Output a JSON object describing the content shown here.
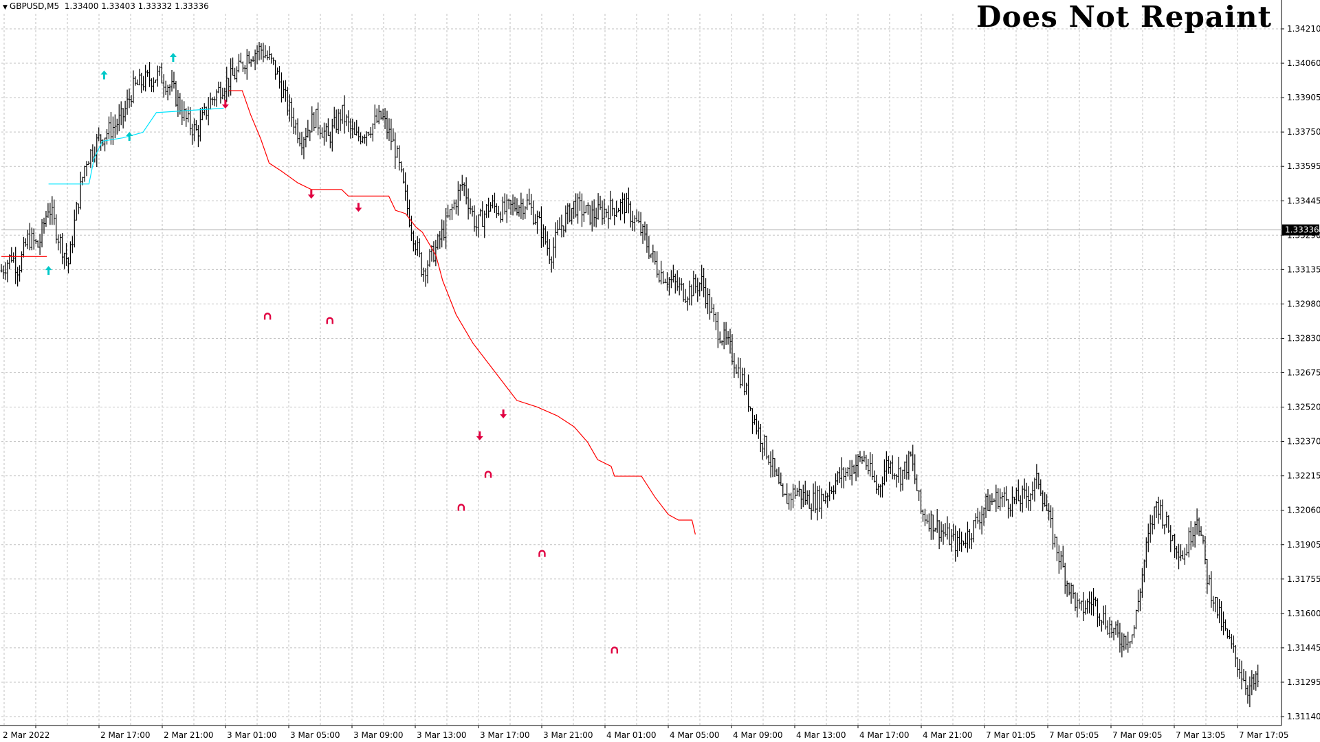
{
  "header": {
    "symbol": "GBPUSD,M5",
    "ohlc": "1.33400 1.33403 1.33332 1.33336"
  },
  "overlay_title": "Does Not Repaint",
  "colors": {
    "background": "#ffffff",
    "grid": "#c0c0c0",
    "bars": "#000000",
    "bull_line": "#00e5ff",
    "bear_line": "#ff0000",
    "buy_arrow": "#00c8c8",
    "sell_arrow": "#e00040",
    "current_price_bg": "#000000",
    "current_price_fg": "#ffffff"
  },
  "chart_data": {
    "type": "line",
    "title": "",
    "xlabel": "",
    "ylabel": "",
    "ylim": [
      1.3108,
      1.3432
    ],
    "grid": true,
    "y_ticks": [
      "1.34210",
      "1.34060",
      "1.33905",
      "1.33750",
      "1.33595",
      "1.33445",
      "1.33290",
      "1.33135",
      "1.32980",
      "1.32830",
      "1.32675",
      "1.32520",
      "1.32370",
      "1.32215",
      "1.32060",
      "1.31905",
      "1.31755",
      "1.31600",
      "1.31445",
      "1.31295",
      "1.31140"
    ],
    "x_ticks": [
      "2 Mar 2022",
      "2 Mar 17:00",
      "2 Mar 21:00",
      "3 Mar 01:00",
      "3 Mar 05:00",
      "3 Mar 09:00",
      "3 Mar 13:00",
      "3 Mar 17:00",
      "3 Mar 21:00",
      "4 Mar 01:00",
      "4 Mar 05:00",
      "4 Mar 09:00",
      "4 Mar 13:00",
      "4 Mar 17:00",
      "4 Mar 21:00",
      "7 Mar 01:05",
      "7 Mar 05:05",
      "7 Mar 09:05",
      "7 Mar 13:05",
      "7 Mar 17:05"
    ],
    "current_price": "1.33336",
    "current_price_value": 1.33336,
    "price_path": [
      [
        0,
        1.3315
      ],
      [
        0.3,
        1.3322
      ],
      [
        0.5,
        1.3316
      ],
      [
        0.8,
        1.333
      ],
      [
        1.1,
        1.3326
      ],
      [
        1.4,
        1.3345
      ],
      [
        1.7,
        1.333
      ],
      [
        2.0,
        1.3318
      ],
      [
        2.2,
        1.334
      ],
      [
        2.5,
        1.3365
      ],
      [
        2.9,
        1.3375
      ],
      [
        3.3,
        1.338
      ],
      [
        3.6,
        1.3385
      ],
      [
        3.9,
        1.3398
      ],
      [
        4.3,
        1.3402
      ],
      [
        4.7,
        1.3404
      ],
      [
        5.1,
        1.3397
      ],
      [
        5.5,
        1.3383
      ],
      [
        5.8,
        1.3378
      ],
      [
        6.2,
        1.3392
      ],
      [
        6.6,
        1.34
      ],
      [
        7.0,
        1.3405
      ],
      [
        7.3,
        1.3413
      ],
      [
        7.7,
        1.3416
      ],
      [
        8.1,
        1.3408
      ],
      [
        8.5,
        1.339
      ],
      [
        8.9,
        1.3375
      ],
      [
        9.3,
        1.3385
      ],
      [
        9.7,
        1.3375
      ],
      [
        10.1,
        1.3387
      ],
      [
        10.5,
        1.3375
      ],
      [
        10.9,
        1.338
      ],
      [
        11.3,
        1.3385
      ],
      [
        11.7,
        1.337
      ],
      [
        12.1,
        1.334
      ],
      [
        12.5,
        1.3315
      ],
      [
        12.9,
        1.3325
      ],
      [
        13.3,
        1.334
      ],
      [
        13.7,
        1.3355
      ],
      [
        14.1,
        1.3335
      ],
      [
        14.5,
        1.3345
      ],
      [
        14.9,
        1.3342
      ],
      [
        15.3,
        1.3345
      ],
      [
        15.6,
        1.3346
      ],
      [
        16.0,
        1.3335
      ],
      [
        16.3,
        1.3322
      ],
      [
        16.6,
        1.3335
      ],
      [
        17.0,
        1.3345
      ],
      [
        17.5,
        1.334
      ],
      [
        18.0,
        1.3343
      ],
      [
        18.5,
        1.3345
      ],
      [
        19.0,
        1.3333
      ],
      [
        19.5,
        1.3315
      ],
      [
        19.9,
        1.331
      ],
      [
        20.3,
        1.3305
      ],
      [
        20.8,
        1.331
      ],
      [
        21.2,
        1.329
      ],
      [
        21.6,
        1.328
      ],
      [
        22.0,
        1.3265
      ],
      [
        22.4,
        1.3245
      ],
      [
        22.8,
        1.323
      ],
      [
        23.2,
        1.321
      ],
      [
        23.6,
        1.3215
      ],
      [
        24.0,
        1.321
      ],
      [
        24.4,
        1.3212
      ],
      [
        24.8,
        1.322
      ],
      [
        25.2,
        1.3225
      ],
      [
        25.6,
        1.323
      ],
      [
        26.0,
        1.3215
      ],
      [
        26.3,
        1.3228
      ],
      [
        26.7,
        1.3222
      ],
      [
        27.0,
        1.323
      ],
      [
        27.3,
        1.3205
      ],
      [
        27.7,
        1.32
      ],
      [
        28.0,
        1.3195
      ],
      [
        28.4,
        1.319
      ],
      [
        28.8,
        1.3197
      ],
      [
        29.2,
        1.3208
      ],
      [
        29.6,
        1.3212
      ],
      [
        30.0,
        1.321
      ],
      [
        30.4,
        1.3212
      ],
      [
        30.8,
        1.322
      ],
      [
        31.2,
        1.3195
      ],
      [
        31.6,
        1.3175
      ],
      [
        32.0,
        1.316
      ],
      [
        32.4,
        1.3165
      ],
      [
        32.8,
        1.3155
      ],
      [
        33.2,
        1.3147
      ],
      [
        33.6,
        1.315
      ],
      [
        34.0,
        1.319
      ],
      [
        34.3,
        1.321
      ],
      [
        34.7,
        1.3195
      ],
      [
        35.1,
        1.3185
      ],
      [
        35.5,
        1.3205
      ],
      [
        35.8,
        1.3175
      ],
      [
        36.2,
        1.3155
      ],
      [
        36.6,
        1.314
      ],
      [
        37.0,
        1.3125
      ],
      [
        37.3,
        1.3128
      ]
    ],
    "bull_line": [
      [
        1.4,
        1.33545
      ],
      [
        2.6,
        1.33545
      ],
      [
        2.75,
        1.3366
      ],
      [
        3.0,
        1.3374
      ],
      [
        3.6,
        1.33755
      ],
      [
        4.2,
        1.3378
      ],
      [
        4.6,
        1.3387
      ],
      [
        6.6,
        1.3389
      ]
    ],
    "bear_line_1": [
      [
        0,
        1.33215
      ],
      [
        1.35,
        1.33215
      ]
    ],
    "bear_line_2": [
      [
        6.75,
        1.3397
      ],
      [
        7.15,
        1.3397
      ],
      [
        7.4,
        1.3386
      ],
      [
        7.7,
        1.3375
      ],
      [
        7.95,
        1.3364
      ],
      [
        8.3,
        1.33605
      ],
      [
        8.8,
        1.3355
      ],
      [
        9.2,
        1.3352
      ],
      [
        10.1,
        1.3352
      ],
      [
        10.3,
        1.3349
      ],
      [
        11.5,
        1.3349
      ],
      [
        11.7,
        1.33425
      ],
      [
        12.0,
        1.3341
      ],
      [
        12.3,
        1.3335
      ],
      [
        12.5,
        1.33325
      ],
      [
        12.9,
        1.3322
      ],
      [
        13.1,
        1.33105
      ],
      [
        13.5,
        1.3295
      ],
      [
        14.0,
        1.3282
      ],
      [
        14.5,
        1.3272
      ],
      [
        15.3,
        1.3256
      ],
      [
        15.9,
        1.3253
      ],
      [
        16.5,
        1.3249
      ],
      [
        17.0,
        1.3244
      ],
      [
        17.4,
        1.3237
      ],
      [
        17.7,
        1.3229
      ],
      [
        18.1,
        1.3226
      ],
      [
        18.2,
        1.32215
      ],
      [
        19.0,
        1.32215
      ],
      [
        19.4,
        1.3212
      ],
      [
        19.8,
        1.3204
      ],
      [
        20.1,
        1.32015
      ],
      [
        20.5,
        1.32015
      ],
      [
        20.6,
        1.3195
      ]
    ],
    "signals": [
      {
        "type": "buy",
        "x": 1.4,
        "price": 1.3315
      },
      {
        "type": "buy",
        "x": 3.8,
        "price": 1.3376
      },
      {
        "type": "buy",
        "x": 3.05,
        "price": 1.3404
      },
      {
        "type": "buy",
        "x": 5.1,
        "price": 1.3412
      },
      {
        "type": "sell",
        "x": 6.65,
        "price": 1.3391
      },
      {
        "type": "sell",
        "x": 9.2,
        "price": 1.335
      },
      {
        "type": "sell",
        "x": 10.6,
        "price": 1.3344
      },
      {
        "type": "sell",
        "x": 14.2,
        "price": 1.324
      },
      {
        "type": "sell",
        "x": 14.9,
        "price": 1.325
      },
      {
        "type": "tp_sell",
        "x": 7.9,
        "price": 1.3294
      },
      {
        "type": "tp_sell",
        "x": 9.75,
        "price": 1.3292
      },
      {
        "type": "tp_sell",
        "x": 13.65,
        "price": 1.3207
      },
      {
        "type": "tp_sell",
        "x": 14.45,
        "price": 1.3222
      },
      {
        "type": "tp_sell",
        "x": 16.05,
        "price": 1.3186
      },
      {
        "type": "tp_sell",
        "x": 18.2,
        "price": 1.3142
      }
    ]
  }
}
